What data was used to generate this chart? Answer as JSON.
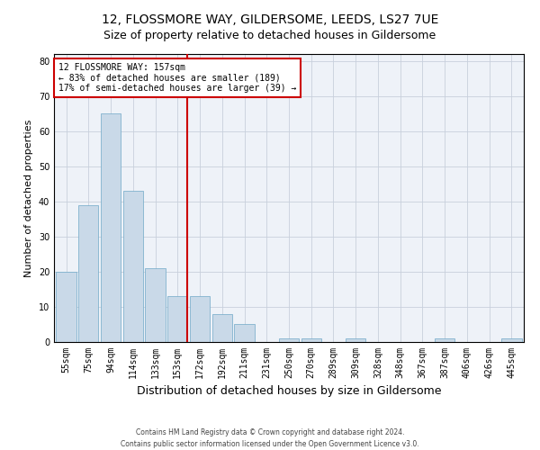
{
  "title": "12, FLOSSMORE WAY, GILDERSOME, LEEDS, LS27 7UE",
  "subtitle": "Size of property relative to detached houses in Gildersome",
  "xlabel": "Distribution of detached houses by size in Gildersome",
  "ylabel": "Number of detached properties",
  "footer_line1": "Contains HM Land Registry data © Crown copyright and database right 2024.",
  "footer_line2": "Contains public sector information licensed under the Open Government Licence v3.0.",
  "bar_labels": [
    "55sqm",
    "75sqm",
    "94sqm",
    "114sqm",
    "133sqm",
    "153sqm",
    "172sqm",
    "192sqm",
    "211sqm",
    "231sqm",
    "250sqm",
    "270sqm",
    "289sqm",
    "309sqm",
    "328sqm",
    "348sqm",
    "367sqm",
    "387sqm",
    "406sqm",
    "426sqm",
    "445sqm"
  ],
  "bar_values": [
    20,
    39,
    65,
    43,
    21,
    13,
    13,
    8,
    5,
    0,
    1,
    1,
    0,
    1,
    0,
    0,
    0,
    1,
    0,
    0,
    1
  ],
  "bar_color": "#c9d9e8",
  "bar_edge_color": "#6fa8c8",
  "highlight_index": 5,
  "highlight_line_color": "#cc0000",
  "annotation_text": "12 FLOSSMORE WAY: 157sqm\n← 83% of detached houses are smaller (189)\n17% of semi-detached houses are larger (39) →",
  "annotation_box_color": "#ffffff",
  "annotation_box_edge_color": "#cc0000",
  "ylim": [
    0,
    82
  ],
  "yticks": [
    0,
    10,
    20,
    30,
    40,
    50,
    60,
    70,
    80
  ],
  "grid_color": "#c8d0dc",
  "bg_color": "#eef2f8",
  "title_fontsize": 10,
  "subtitle_fontsize": 9,
  "ylabel_fontsize": 8,
  "xlabel_fontsize": 9,
  "tick_fontsize": 7,
  "annotation_fontsize": 7,
  "footer_fontsize": 5.5
}
